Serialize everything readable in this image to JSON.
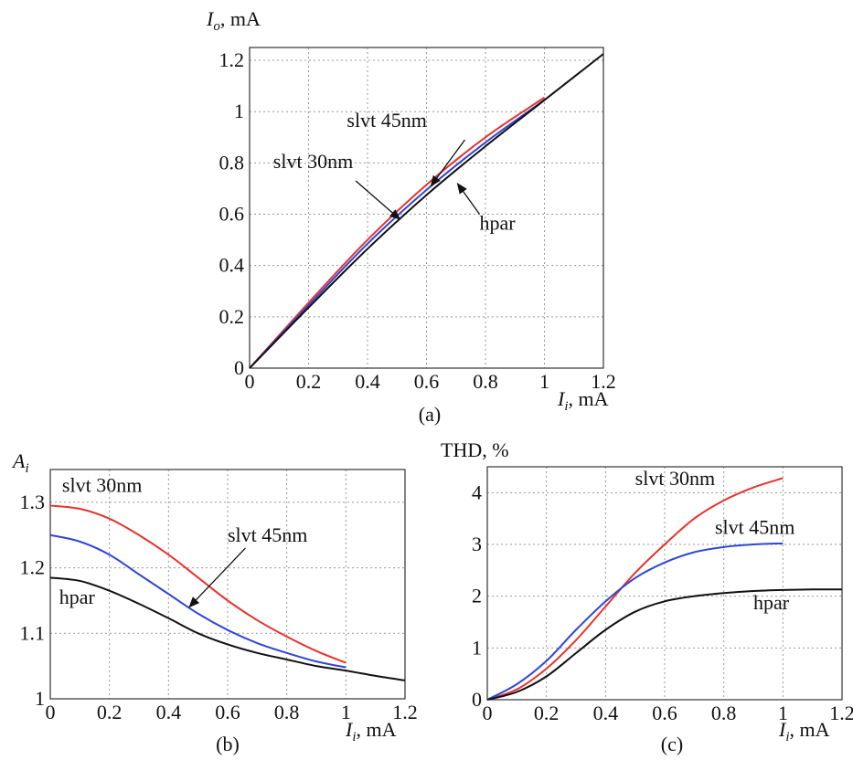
{
  "chart_data": [
    {
      "panel": "a",
      "type": "line",
      "caption": "(a)",
      "ylabel_var": "I",
      "ylabel_sub": "o",
      "ylabel_unit": ", mA",
      "xlabel_var": "I",
      "xlabel_sub": "i",
      "xlabel_unit": ", mA",
      "xlim": [
        0,
        1.2
      ],
      "ylim": [
        0,
        1.25
      ],
      "xticks": [
        0,
        0.2,
        0.4,
        0.6,
        0.8,
        1,
        1.2
      ],
      "xtick_labels": [
        "0",
        "0.2",
        "0.4",
        "0.6",
        "0.8",
        "1",
        "1.2"
      ],
      "yticks": [
        0,
        0.2,
        0.4,
        0.6,
        0.8,
        1,
        1.2
      ],
      "ytick_labels": [
        "0",
        "0.2",
        "0.4",
        "0.6",
        "0.8",
        "1",
        "1.2"
      ],
      "grid": true,
      "series": [
        {
          "color": "#e8322b",
          "x": [
            0,
            0.2,
            0.4,
            0.6,
            0.8,
            1.0
          ],
          "y": [
            0,
            0.255,
            0.5,
            0.715,
            0.9,
            1.055
          ]
        },
        {
          "color": "#2e46d6",
          "x": [
            0,
            0.2,
            0.4,
            0.6,
            0.8,
            1.0
          ],
          "y": [
            0,
            0.245,
            0.485,
            0.695,
            0.88,
            1.045
          ]
        },
        {
          "color": "#111111",
          "x": [
            0,
            0.2,
            0.4,
            0.6,
            0.8,
            1.0,
            1.2
          ],
          "y": [
            0,
            0.236,
            0.465,
            0.675,
            0.865,
            1.045,
            1.225
          ]
        }
      ],
      "annotations": [
        {
          "text": "slvt 45nm",
          "tx": 0.33,
          "ty": 0.94,
          "ax": 0.73,
          "ay": 0.89,
          "arrow_to": [
            0.615,
            0.71
          ]
        },
        {
          "text": "slvt 30nm",
          "tx": 0.08,
          "ty": 0.78,
          "ax": 0.36,
          "ay": 0.73,
          "arrow_to": [
            0.51,
            0.58
          ]
        },
        {
          "text": "hpar",
          "tx": 0.78,
          "ty": 0.54,
          "ax": 0.78,
          "ay": 0.6,
          "arrow_to": [
            0.705,
            0.72
          ]
        }
      ]
    },
    {
      "panel": "b",
      "type": "line",
      "caption": "(b)",
      "ylabel_var": "A",
      "ylabel_sub": "i",
      "ylabel_unit": "",
      "xlabel_var": "I",
      "xlabel_sub": "i",
      "xlabel_unit": ", mA",
      "xlim": [
        0,
        1.2
      ],
      "ylim": [
        1.0,
        1.35
      ],
      "xticks": [
        0,
        0.2,
        0.4,
        0.6,
        0.8,
        1,
        1.2
      ],
      "xtick_labels": [
        "0",
        "0.2",
        "0.4",
        "0.6",
        "0.8",
        "1",
        "1.2"
      ],
      "yticks": [
        1.0,
        1.1,
        1.2,
        1.3
      ],
      "ytick_labels": [
        "1",
        "1.1",
        "1.2",
        "1.3"
      ],
      "grid": true,
      "series": [
        {
          "color": "#e8322b",
          "x": [
            0,
            0.1,
            0.2,
            0.3,
            0.4,
            0.5,
            0.6,
            0.7,
            0.8,
            0.9,
            1.0
          ],
          "y": [
            1.295,
            1.29,
            1.275,
            1.25,
            1.22,
            1.185,
            1.15,
            1.12,
            1.095,
            1.073,
            1.055
          ]
        },
        {
          "color": "#2e46d6",
          "x": [
            0,
            0.1,
            0.2,
            0.3,
            0.4,
            0.5,
            0.6,
            0.7,
            0.8,
            0.9,
            1.0
          ],
          "y": [
            1.25,
            1.24,
            1.22,
            1.19,
            1.16,
            1.13,
            1.105,
            1.085,
            1.07,
            1.057,
            1.048
          ]
        },
        {
          "color": "#111111",
          "x": [
            0,
            0.1,
            0.2,
            0.3,
            0.4,
            0.5,
            0.6,
            0.7,
            0.8,
            0.9,
            1.0,
            1.1,
            1.2
          ],
          "y": [
            1.185,
            1.18,
            1.165,
            1.145,
            1.123,
            1.1,
            1.083,
            1.07,
            1.06,
            1.05,
            1.043,
            1.035,
            1.028
          ]
        }
      ],
      "annotations": [
        {
          "text": "slvt 30nm",
          "tx": 0.04,
          "ty": 1.316,
          "ax": null,
          "ay": null,
          "arrow_to": null
        },
        {
          "text": "slvt 45nm",
          "tx": 0.6,
          "ty": 1.24,
          "ax": 0.66,
          "ay": 1.23,
          "arrow_to": [
            0.47,
            1.14
          ]
        },
        {
          "text": "hpar",
          "tx": 0.03,
          "ty": 1.145,
          "ax": null,
          "ay": null,
          "arrow_to": null
        }
      ]
    },
    {
      "panel": "c",
      "type": "line",
      "caption": "(c)",
      "ylabel_var": "THD, %",
      "ylabel_sub": "",
      "ylabel_unit": "",
      "xlabel_var": "I",
      "xlabel_sub": "i",
      "xlabel_unit": ", mA",
      "xlim": [
        0,
        1.2
      ],
      "ylim": [
        0,
        4.5
      ],
      "xticks": [
        0,
        0.2,
        0.4,
        0.6,
        0.8,
        1,
        1.2
      ],
      "xtick_labels": [
        "0",
        "0.2",
        "0.4",
        "0.6",
        "0.8",
        "1",
        "1.2"
      ],
      "yticks": [
        0,
        1,
        2,
        3,
        4
      ],
      "ytick_labels": [
        "0",
        "1",
        "2",
        "3",
        "4"
      ],
      "grid": true,
      "series": [
        {
          "color": "#e8322b",
          "x": [
            0,
            0.1,
            0.2,
            0.3,
            0.4,
            0.5,
            0.6,
            0.7,
            0.8,
            0.9,
            1.0
          ],
          "y": [
            0,
            0.2,
            0.6,
            1.15,
            1.8,
            2.45,
            3.0,
            3.5,
            3.85,
            4.1,
            4.28
          ]
        },
        {
          "color": "#2e46d6",
          "x": [
            0,
            0.1,
            0.2,
            0.3,
            0.4,
            0.5,
            0.6,
            0.7,
            0.8,
            0.9,
            1.0
          ],
          "y": [
            0,
            0.3,
            0.75,
            1.35,
            1.9,
            2.35,
            2.65,
            2.85,
            2.95,
            3.0,
            3.02
          ]
        },
        {
          "color": "#111111",
          "x": [
            0,
            0.1,
            0.2,
            0.3,
            0.4,
            0.5,
            0.6,
            0.7,
            0.8,
            0.9,
            1.0,
            1.1,
            1.2
          ],
          "y": [
            0,
            0.15,
            0.45,
            0.9,
            1.35,
            1.7,
            1.9,
            2.0,
            2.06,
            2.1,
            2.12,
            2.13,
            2.13
          ]
        }
      ],
      "annotations": [
        {
          "text": "slvt 30nm",
          "tx": 0.5,
          "ty": 4.15,
          "ax": null,
          "ay": null,
          "arrow_to": null
        },
        {
          "text": "slvt 45nm",
          "tx": 0.77,
          "ty": 3.2,
          "ax": null,
          "ay": null,
          "arrow_to": null
        },
        {
          "text": "hpar",
          "tx": 0.9,
          "ty": 1.75,
          "ax": null,
          "ay": null,
          "arrow_to": null
        }
      ]
    }
  ]
}
